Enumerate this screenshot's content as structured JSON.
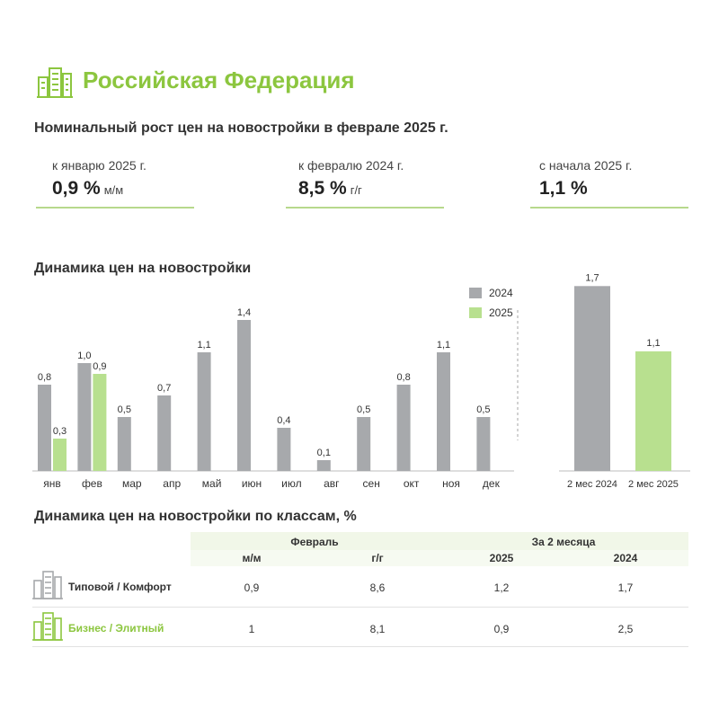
{
  "header": {
    "region_title": "Российская Федерация",
    "subtitle": "Номинальный рост цен на новостройки в феврале 2025 г."
  },
  "kpis": [
    {
      "label": "к январю 2025 г.",
      "value": "0,9 %",
      "unit": "м/м"
    },
    {
      "label": "к февралю 2024 г.",
      "value": "8,5 %",
      "unit": "г/г"
    },
    {
      "label": "с начала 2025 г.",
      "value": "1,1 %",
      "unit": ""
    }
  ],
  "colors": {
    "gray": "#a7a9ac",
    "green": "#b8e08f",
    "accent": "#8cc63f"
  },
  "chart_data": [
    {
      "type": "bar",
      "title": "Динамика цен на новостройки",
      "categories": [
        "янв",
        "фев",
        "мар",
        "апр",
        "май",
        "июн",
        "июл",
        "авг",
        "сен",
        "окт",
        "ноя",
        "дек"
      ],
      "series": [
        {
          "name": "2024",
          "values": [
            0.8,
            1.0,
            0.5,
            0.7,
            1.1,
            1.4,
            0.4,
            0.1,
            0.5,
            0.8,
            1.1,
            0.5
          ],
          "labels": [
            "0,8",
            "1,0",
            "0,5",
            "0,7",
            "1,1",
            "1,4",
            "0,4",
            "0,1",
            "0,5",
            "0,8",
            "1,1",
            "0,5"
          ]
        },
        {
          "name": "2025",
          "values": [
            0.3,
            0.9,
            null,
            null,
            null,
            null,
            null,
            null,
            null,
            null,
            null,
            null
          ],
          "labels": [
            "0,3",
            "0,9",
            "",
            "",
            "",
            "",
            "",
            "",
            "",
            "",
            "",
            ""
          ]
        }
      ],
      "legend_position": "top-right"
    },
    {
      "type": "bar",
      "categories": [
        "2 мес 2024",
        "2 мес 2025"
      ],
      "values": [
        1.7,
        1.1
      ],
      "labels": [
        "1,7",
        "1,1"
      ]
    }
  ],
  "table": {
    "title": "Динамика цен на новостройки по классам, %",
    "group_headers": [
      "Февраль",
      "За 2 месяца"
    ],
    "columns": [
      "м/м",
      "г/г",
      "2025",
      "2024"
    ],
    "rows": [
      {
        "label": "Типовой / Комфорт",
        "values": [
          "0,9",
          "8,6",
          "1,2",
          "1,7"
        ]
      },
      {
        "label": "Бизнес / Элитный",
        "values": [
          "1",
          "8,1",
          "0,9",
          "2,5"
        ]
      }
    ]
  }
}
